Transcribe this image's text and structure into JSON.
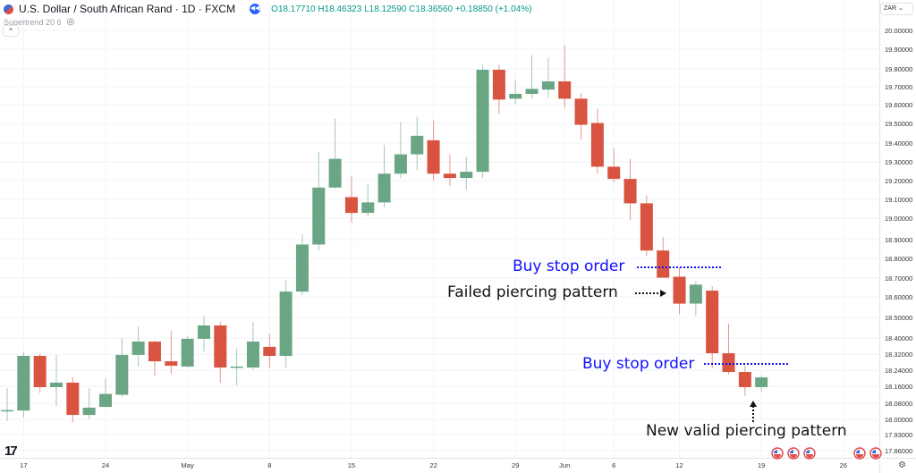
{
  "header": {
    "symbol_title": "U.S. Dollar / South African Rand · 1D · FXCM",
    "open": "O18.17710",
    "high": "H18.46323",
    "low": "L18.12590",
    "close": "C18.36560",
    "change": "+0.18850 (+1.04%)",
    "up_color": "#089981"
  },
  "indicator": {
    "label": "Supertrend 20 6"
  },
  "currency_select": {
    "value": "ZAR"
  },
  "annotations": {
    "buy_stop_1": "Buy stop order",
    "failed": "Failed piercing pattern",
    "buy_stop_2": "Buy stop order",
    "valid": "New valid piercing pattern"
  },
  "colors": {
    "up": "#6aa584",
    "down": "#d95440",
    "grid": "#f0f3fa",
    "annotation_blue": "#1010ff"
  },
  "chart_data": {
    "type": "candlestick",
    "title": "",
    "y_ticks": [
      20.0,
      19.9,
      19.8,
      19.7,
      19.6,
      19.5,
      19.4,
      19.3,
      19.2,
      19.1,
      19.0,
      18.9,
      18.8,
      18.7,
      18.6,
      18.5,
      18.4,
      18.32,
      18.24,
      18.16,
      18.08,
      18.0,
      17.93,
      17.86
    ],
    "y_tick_labels": [
      "20.00000",
      "19.90000",
      "19.80000",
      "19.70000",
      "19.60000",
      "19.50000",
      "19.40000",
      "19.30000",
      "19.20000",
      "19.10000",
      "19.00000",
      "18.90000",
      "18.80000",
      "18.70000",
      "18.60000",
      "18.50000",
      "18.40000",
      "18.32000",
      "18.24000",
      "18.16000",
      "18.08000",
      "18.00000",
      "17.93000",
      "17.86000"
    ],
    "x_labels": [
      {
        "date": "2023-04-17",
        "text": "17"
      },
      {
        "date": "2023-04-24",
        "text": "24"
      },
      {
        "date": "2023-05-01",
        "text": "May"
      },
      {
        "date": "2023-05-08",
        "text": "8"
      },
      {
        "date": "2023-05-15",
        "text": "15"
      },
      {
        "date": "2023-05-22",
        "text": "22"
      },
      {
        "date": "2023-05-29",
        "text": "29"
      },
      {
        "date": "2023-06-01",
        "text": "Jun"
      },
      {
        "date": "2023-06-06",
        "text": "6"
      },
      {
        "date": "2023-06-12",
        "text": "12"
      },
      {
        "date": "2023-06-19",
        "text": "19"
      },
      {
        "date": "2023-06-26",
        "text": "26"
      }
    ],
    "candles": [
      {
        "date": "2023-04-14",
        "o": 18.042,
        "h": 18.151,
        "l": 17.991,
        "c": 18.046
      },
      {
        "date": "2023-04-17",
        "o": 18.044,
        "h": 18.329,
        "l": 18.009,
        "c": 18.311
      },
      {
        "date": "2023-04-18",
        "o": 18.311,
        "h": 18.32,
        "l": 18.129,
        "c": 18.156
      },
      {
        "date": "2023-04-19",
        "o": 18.156,
        "h": 18.316,
        "l": 18.067,
        "c": 18.178
      },
      {
        "date": "2023-04-20",
        "o": 18.178,
        "h": 18.204,
        "l": 17.987,
        "c": 18.022
      },
      {
        "date": "2023-04-21",
        "o": 18.022,
        "h": 18.151,
        "l": 18.0,
        "c": 18.058
      },
      {
        "date": "2023-04-24",
        "o": 18.062,
        "h": 18.2,
        "l": 18.062,
        "c": 18.124
      },
      {
        "date": "2023-04-25",
        "o": 18.12,
        "h": 18.4,
        "l": 18.111,
        "c": 18.316
      },
      {
        "date": "2023-04-26",
        "o": 18.316,
        "h": 18.456,
        "l": 18.258,
        "c": 18.382
      },
      {
        "date": "2023-04-27",
        "o": 18.382,
        "h": 18.387,
        "l": 18.213,
        "c": 18.284
      },
      {
        "date": "2023-04-28",
        "o": 18.284,
        "h": 18.433,
        "l": 18.222,
        "c": 18.262
      },
      {
        "date": "2023-05-01",
        "o": 18.258,
        "h": 18.409,
        "l": 18.253,
        "c": 18.396
      },
      {
        "date": "2023-05-02",
        "o": 18.396,
        "h": 18.507,
        "l": 18.333,
        "c": 18.461
      },
      {
        "date": "2023-05-03",
        "o": 18.461,
        "h": 18.479,
        "l": 18.178,
        "c": 18.253
      },
      {
        "date": "2023-05-04",
        "o": 18.253,
        "h": 18.347,
        "l": 18.164,
        "c": 18.258
      },
      {
        "date": "2023-05-05",
        "o": 18.253,
        "h": 18.479,
        "l": 18.244,
        "c": 18.382
      },
      {
        "date": "2023-05-08",
        "o": 18.356,
        "h": 18.419,
        "l": 18.253,
        "c": 18.311
      },
      {
        "date": "2023-05-09",
        "o": 18.311,
        "h": 18.688,
        "l": 18.253,
        "c": 18.628
      },
      {
        "date": "2023-05-10",
        "o": 18.628,
        "h": 18.926,
        "l": 18.609,
        "c": 18.874
      },
      {
        "date": "2023-05-11",
        "o": 18.874,
        "h": 19.354,
        "l": 18.842,
        "c": 19.163
      },
      {
        "date": "2023-05-12",
        "o": 19.163,
        "h": 19.526,
        "l": 19.158,
        "c": 19.316
      },
      {
        "date": "2023-05-15",
        "o": 19.112,
        "h": 19.223,
        "l": 18.981,
        "c": 19.028
      },
      {
        "date": "2023-05-16",
        "o": 19.028,
        "h": 19.181,
        "l": 19.009,
        "c": 19.084
      },
      {
        "date": "2023-05-17",
        "o": 19.084,
        "h": 19.391,
        "l": 19.056,
        "c": 19.237
      },
      {
        "date": "2023-05-18",
        "o": 19.237,
        "h": 19.507,
        "l": 19.214,
        "c": 19.34
      },
      {
        "date": "2023-05-19",
        "o": 19.34,
        "h": 19.535,
        "l": 19.256,
        "c": 19.437
      },
      {
        "date": "2023-05-22",
        "o": 19.414,
        "h": 19.516,
        "l": 19.2,
        "c": 19.237
      },
      {
        "date": "2023-05-23",
        "o": 19.237,
        "h": 19.34,
        "l": 19.172,
        "c": 19.214
      },
      {
        "date": "2023-05-24",
        "o": 19.214,
        "h": 19.326,
        "l": 19.149,
        "c": 19.247
      },
      {
        "date": "2023-05-25",
        "o": 19.247,
        "h": 19.819,
        "l": 19.214,
        "c": 19.795
      },
      {
        "date": "2023-05-26",
        "o": 19.795,
        "h": 19.819,
        "l": 19.549,
        "c": 19.628
      },
      {
        "date": "2023-05-29",
        "o": 19.633,
        "h": 19.74,
        "l": 19.605,
        "c": 19.66
      },
      {
        "date": "2023-05-30",
        "o": 19.66,
        "h": 19.87,
        "l": 19.633,
        "c": 19.688
      },
      {
        "date": "2023-05-31",
        "o": 19.684,
        "h": 19.856,
        "l": 19.637,
        "c": 19.73
      },
      {
        "date": "2023-06-01",
        "o": 19.73,
        "h": 19.921,
        "l": 19.586,
        "c": 19.633
      },
      {
        "date": "2023-06-02",
        "o": 19.633,
        "h": 19.665,
        "l": 19.419,
        "c": 19.493
      },
      {
        "date": "2023-06-05",
        "o": 19.502,
        "h": 19.577,
        "l": 19.237,
        "c": 19.274
      },
      {
        "date": "2023-06-06",
        "o": 19.274,
        "h": 19.372,
        "l": 19.191,
        "c": 19.209
      },
      {
        "date": "2023-06-07",
        "o": 19.209,
        "h": 19.316,
        "l": 18.991,
        "c": 19.079
      },
      {
        "date": "2023-06-08",
        "o": 19.079,
        "h": 19.121,
        "l": 18.814,
        "c": 18.842
      },
      {
        "date": "2023-06-09",
        "o": 18.842,
        "h": 18.912,
        "l": 18.702,
        "c": 18.702
      },
      {
        "date": "2023-06-12",
        "o": 18.707,
        "h": 18.754,
        "l": 18.516,
        "c": 18.567
      },
      {
        "date": "2023-06-13",
        "o": 18.567,
        "h": 18.684,
        "l": 18.507,
        "c": 18.665
      },
      {
        "date": "2023-06-14",
        "o": 18.633,
        "h": 18.656,
        "l": 18.249,
        "c": 18.324
      },
      {
        "date": "2023-06-15",
        "o": 18.324,
        "h": 18.47,
        "l": 18.218,
        "c": 18.231
      },
      {
        "date": "2023-06-16",
        "o": 18.231,
        "h": 18.262,
        "l": 18.116,
        "c": 18.156
      },
      {
        "date": "2023-06-19",
        "o": 18.156,
        "h": 18.213,
        "l": 18.133,
        "c": 18.204
      }
    ],
    "grid": true
  }
}
